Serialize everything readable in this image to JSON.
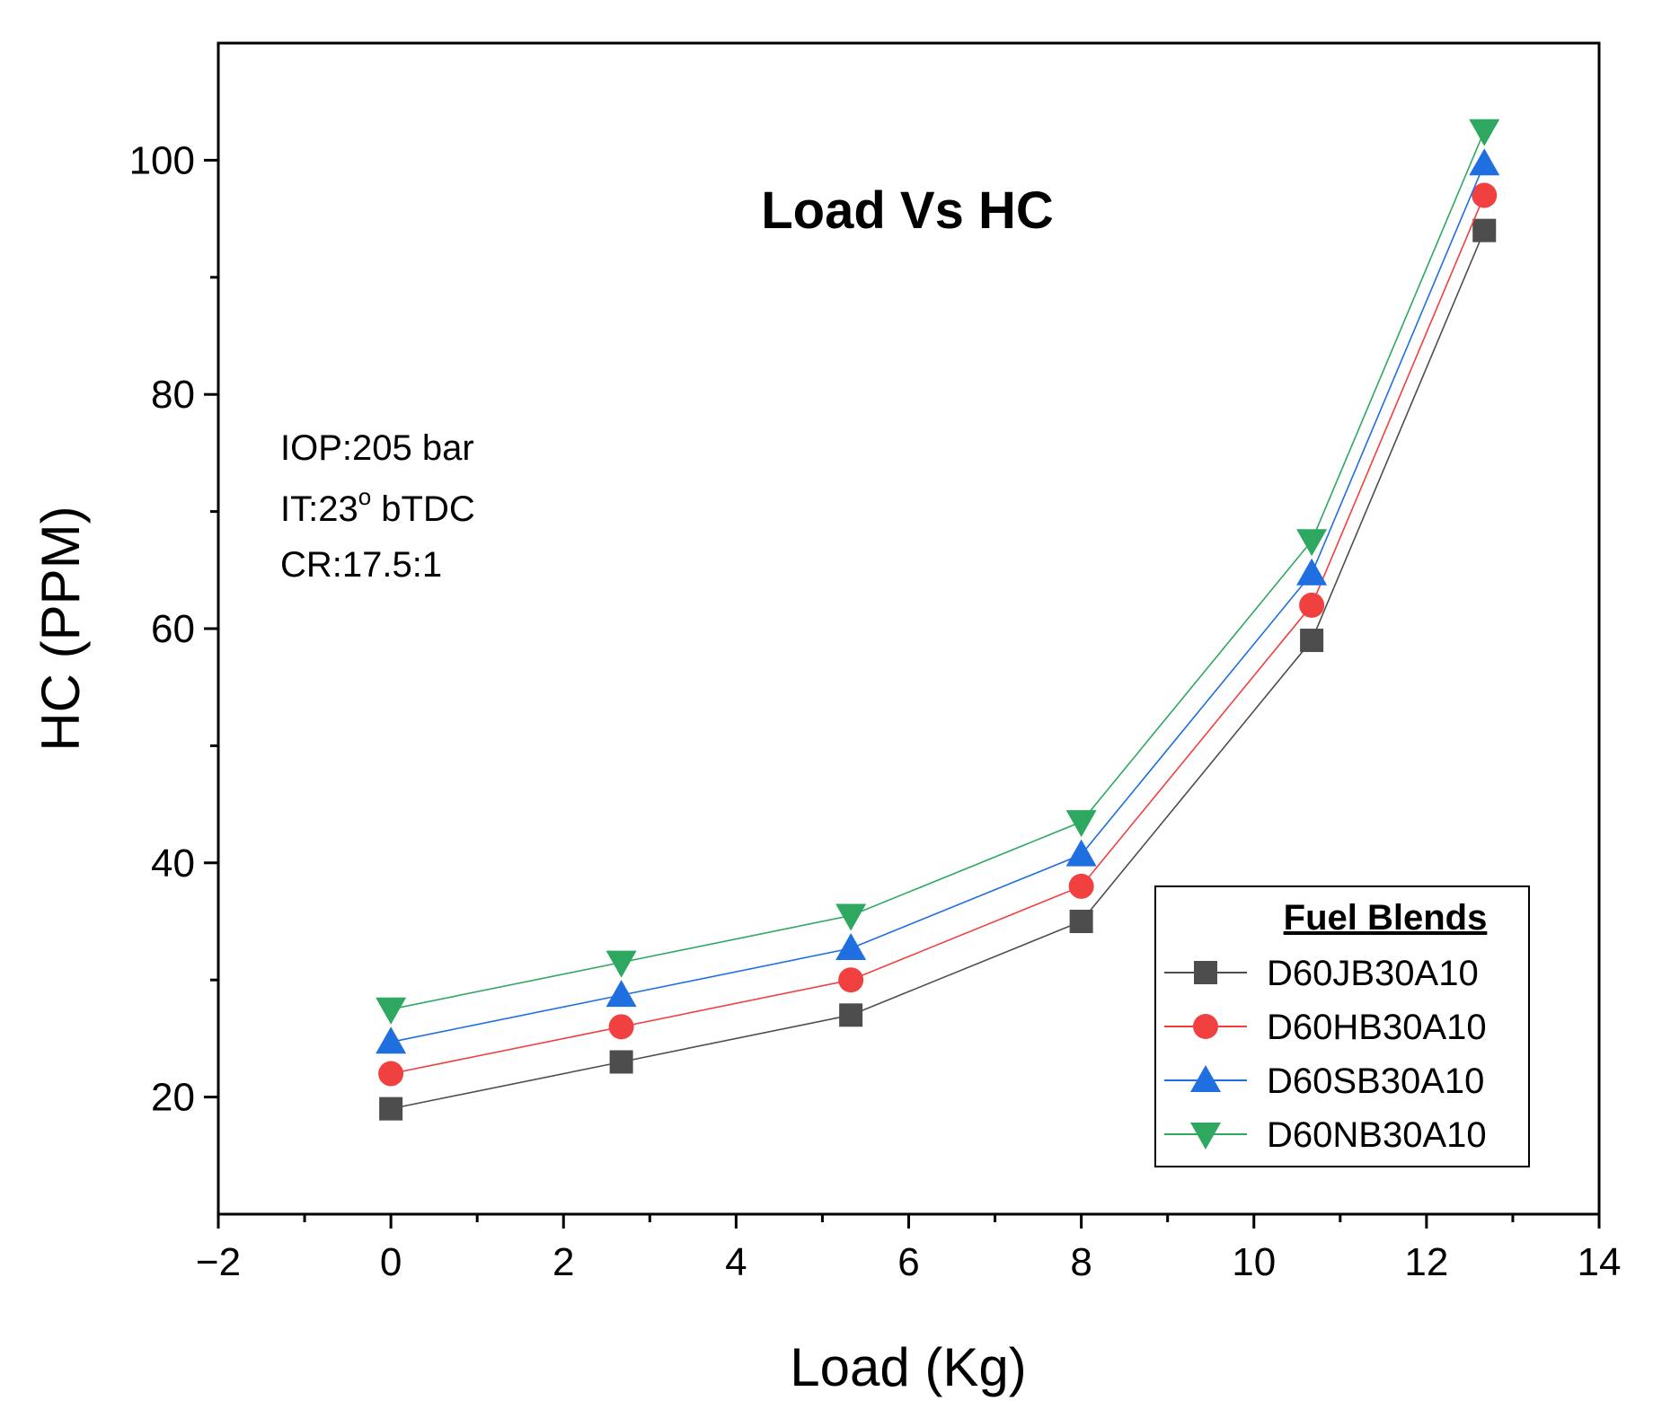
{
  "chart_data": {
    "type": "line",
    "title": "Load Vs HC",
    "xlabel": "Load (Kg)",
    "ylabel": "HC (PPM)",
    "xlim": [
      -2,
      14
    ],
    "ylim": [
      10,
      110
    ],
    "x_ticks": [
      -2,
      0,
      2,
      4,
      6,
      8,
      10,
      12,
      14
    ],
    "x_tick_labels": [
      "−2",
      "0",
      "2",
      "4",
      "6",
      "8",
      "10",
      "12",
      "14"
    ],
    "y_ticks": [
      20,
      40,
      60,
      80,
      100
    ],
    "y_tick_labels": [
      "20",
      "40",
      "60",
      "80",
      "100"
    ],
    "grid": false,
    "annotations": [
      "IOP:205 bar",
      "IT:23",
      "o",
      " bTDC",
      "CR:17.5:1"
    ],
    "legend": {
      "title": "Fuel Blends",
      "position": "bottom-right"
    },
    "x": [
      0,
      2.67,
      5.33,
      8,
      10.67,
      12.67
    ],
    "series": [
      {
        "name": "D60JB30A10",
        "marker": "square",
        "color": "#4d4d4d",
        "values": [
          19,
          23,
          27,
          35,
          59,
          94
        ]
      },
      {
        "name": "D60HB30A10",
        "marker": "circle",
        "color": "#f04040",
        "values": [
          22,
          26,
          30,
          38,
          62,
          97
        ]
      },
      {
        "name": "D60SB30A10",
        "marker": "triangle-up",
        "color": "#1f6fe0",
        "values": [
          24.7,
          28.7,
          32.7,
          40.7,
          64.7,
          99.7
        ]
      },
      {
        "name": "D60NB30A10",
        "marker": "triangle-down",
        "color": "#2ea860",
        "values": [
          27.5,
          31.5,
          35.5,
          43.5,
          67.5,
          102.5
        ]
      }
    ]
  }
}
